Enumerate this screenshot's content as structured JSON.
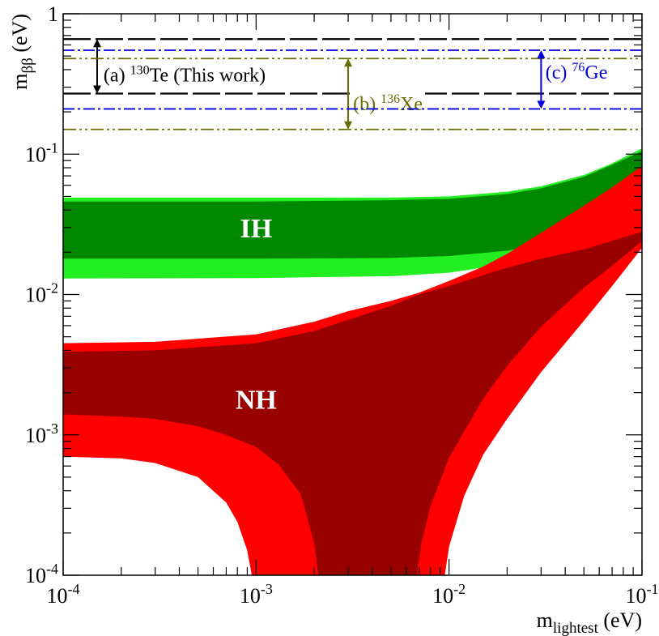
{
  "chart_data": {
    "type": "area",
    "title": "",
    "xlabel": {
      "main": "m",
      "sub": "lightest",
      "unit": "(eV)"
    },
    "ylabel": {
      "main": "m",
      "sub": "ββ",
      "unit": "(eV)"
    },
    "x_scale": "log",
    "y_scale": "log",
    "xlim": [
      0.0001,
      0.1
    ],
    "ylim": [
      0.0001,
      1
    ],
    "grid": false,
    "x_ticks": [
      {
        "value": 0.0001,
        "base": "10",
        "exp": "-4"
      },
      {
        "value": 0.001,
        "base": "10",
        "exp": "-3"
      },
      {
        "value": 0.01,
        "base": "10",
        "exp": "-2"
      },
      {
        "value": 0.1,
        "base": "10",
        "exp": "-1"
      }
    ],
    "y_ticks": [
      {
        "value": 0.0001,
        "base": "10",
        "exp": "-4"
      },
      {
        "value": 0.001,
        "base": "10",
        "exp": "-3"
      },
      {
        "value": 0.01,
        "base": "10",
        "exp": "-2"
      },
      {
        "value": 0.1,
        "base": "10",
        "exp": "-1"
      },
      {
        "value": 1,
        "base": "1",
        "exp": ""
      }
    ],
    "regions": [
      {
        "name": "IH",
        "label": "IH",
        "label_at": [
          0.001,
          0.03
        ],
        "outer_color": "#22ee22",
        "inner_color": "#008800",
        "outer": {
          "x": [
            0.0001,
            0.001,
            0.005,
            0.01,
            0.02,
            0.03,
            0.05,
            0.07,
            0.1
          ],
          "upper": [
            0.049,
            0.049,
            0.049,
            0.05,
            0.054,
            0.059,
            0.071,
            0.086,
            0.11
          ],
          "lower": [
            0.013,
            0.0131,
            0.0135,
            0.0143,
            0.0165,
            0.019,
            0.024,
            0.029,
            0.038
          ]
        },
        "inner": {
          "x": [
            0.0001,
            0.001,
            0.005,
            0.01,
            0.02,
            0.03,
            0.05,
            0.07,
            0.1
          ],
          "upper": [
            0.046,
            0.046,
            0.047,
            0.048,
            0.052,
            0.057,
            0.069,
            0.084,
            0.105
          ],
          "lower": [
            0.018,
            0.018,
            0.0182,
            0.0188,
            0.0205,
            0.023,
            0.028,
            0.033,
            0.042
          ]
        }
      },
      {
        "name": "NH",
        "label": "NH",
        "label_at": [
          0.001,
          0.0018
        ],
        "outer_color": "#ff0000",
        "inner_color": "#990000",
        "outer": {
          "upper": {
            "x": [
              0.0001,
              0.0003,
              0.001,
              0.002,
              0.003,
              0.005,
              0.007,
              0.01,
              0.015,
              0.02,
              0.03,
              0.05,
              0.07,
              0.1
            ],
            "y": [
              0.0045,
              0.0046,
              0.0052,
              0.0064,
              0.0076,
              0.009,
              0.0103,
              0.0125,
              0.0158,
              0.0195,
              0.0275,
              0.043,
              0.058,
              0.0825
            ]
          },
          "lower": {
            "x": [
              0.0001,
              0.0002,
              0.0003,
              0.0005,
              0.0007,
              0.0008,
              0.0009,
              0.00095,
              0.0095,
              0.01,
              0.012,
              0.015,
              0.02,
              0.03,
              0.05,
              0.07,
              0.1
            ],
            "y": [
              0.0007,
              0.00068,
              0.00063,
              0.0005,
              0.00033,
              0.00024,
              0.00015,
              0.0001,
              0.0001,
              0.00016,
              0.00037,
              0.00072,
              0.0013,
              0.0028,
              0.0065,
              0.0115,
              0.0215
            ]
          }
        },
        "inner": {
          "upper": {
            "x": [
              0.0001,
              0.0003,
              0.001,
              0.002,
              0.003,
              0.005,
              0.007,
              0.01,
              0.015,
              0.02,
              0.03,
              0.05,
              0.1
            ],
            "y": [
              0.0039,
              0.004,
              0.0045,
              0.0055,
              0.0066,
              0.0083,
              0.01,
              0.0115,
              0.0137,
              0.0155,
              0.018,
              0.021,
              0.028
            ]
          },
          "lower": {
            "x": [
              0.0001,
              0.0002,
              0.0003,
              0.0005,
              0.0007,
              0.001,
              0.0013,
              0.0017,
              0.002,
              0.0021,
              0.0068,
              0.0072,
              0.008,
              0.01,
              0.015,
              0.02,
              0.03,
              0.05,
              0.07,
              0.1
            ],
            "y": [
              0.0014,
              0.00135,
              0.0013,
              0.00115,
              0.001,
              0.00082,
              0.00062,
              0.00038,
              0.00017,
              0.0001,
              0.0001,
              0.00017,
              0.00031,
              0.00069,
              0.0018,
              0.0031,
              0.0059,
              0.0112,
              0.016,
              0.024
            ]
          }
        }
      }
    ],
    "limits": [
      {
        "name": "(a) 130Te (This work)",
        "label": "(a) ",
        "isotope_mass": "130",
        "isotope": "Te",
        "label_suffix": " (This work)",
        "color": "#000000",
        "style": "dashed",
        "y": [
          0.27,
          0.66
        ],
        "arrow_x": 0.00015,
        "label_at": [
          0.000162,
          0.33
        ]
      },
      {
        "name": "(b) 136Xe",
        "label": "(b) ",
        "isotope_mass": "136",
        "isotope": "Xe",
        "label_suffix": "",
        "color": "#6b6b00",
        "style": "dashdotdot",
        "y": [
          0.15,
          0.48
        ],
        "arrow_x": 0.003,
        "label_at": [
          0.00318,
          0.205
        ]
      },
      {
        "name": "(c) 76Ge",
        "label": "(c) ",
        "isotope_mass": "76",
        "isotope": "Ge",
        "label_suffix": "",
        "color": "#0000dd",
        "style": "dashdot",
        "y": [
          0.21,
          0.55
        ],
        "arrow_x": 0.03,
        "label_at": [
          0.0316,
          0.345
        ]
      }
    ]
  }
}
